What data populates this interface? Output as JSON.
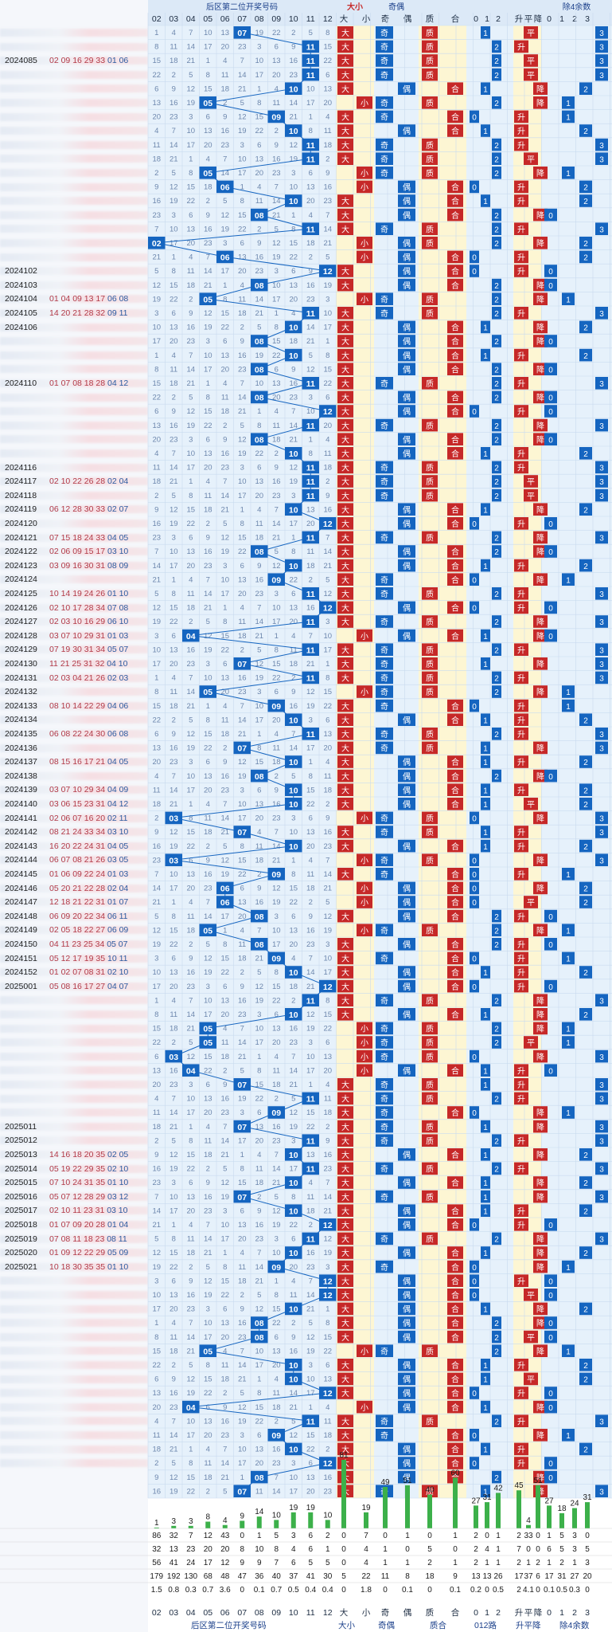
{
  "headers": {
    "group1": "后区第二位开奖号码",
    "group2": "大小",
    "group3": "奇偶",
    "group4": "质合",
    "group5": "012路",
    "group6": "升平降",
    "group7": "除4余数"
  },
  "subheaders": {
    "nums": [
      "02",
      "03",
      "04",
      "05",
      "06",
      "07",
      "08",
      "09",
      "10",
      "11",
      "12"
    ],
    "daxiao": [
      "大",
      "小"
    ],
    "jiou": [
      "奇",
      "偶"
    ],
    "zhihe": [
      "质",
      "合"
    ],
    "lu": [
      "0",
      "1",
      "2"
    ],
    "shengpingjiang": [
      "升",
      "平",
      "降"
    ],
    "yu4": [
      "0",
      "1",
      "2",
      "3"
    ]
  },
  "periods": [
    {
      "id": "2024085",
      "nums": "02 09 16 29 33",
      "back": "01 06"
    },
    {
      "id": "2024102",
      "nums": "",
      "back": ""
    },
    {
      "id": "2024103",
      "nums": "",
      "back": ""
    },
    {
      "id": "2024104",
      "nums": "01 04 09 13 17",
      "back": "06 08"
    },
    {
      "id": "2024105",
      "nums": "14 20 21 28 32",
      "back": "09 11"
    },
    {
      "id": "2024106",
      "nums": "",
      "back": ""
    },
    {
      "id": "2024110",
      "nums": "01 07 08 18 28",
      "back": "04 12"
    },
    {
      "id": "2024116",
      "nums": "",
      "back": ""
    },
    {
      "id": "2024117",
      "nums": "02 10 22 26 28",
      "back": "02 04"
    },
    {
      "id": "2024118",
      "nums": "",
      "back": ""
    },
    {
      "id": "2024119",
      "nums": "06 12 28 30 33",
      "back": "02 07"
    },
    {
      "id": "2024120",
      "nums": "",
      "back": ""
    },
    {
      "id": "2024121",
      "nums": "07 15 18 24 33",
      "back": "04 05"
    },
    {
      "id": "2024122",
      "nums": "02 06 09 15 17",
      "back": "03 10"
    },
    {
      "id": "2024123",
      "nums": "03 09 16 30 31",
      "back": "08 09"
    },
    {
      "id": "2024124",
      "nums": "",
      "back": ""
    },
    {
      "id": "2024125",
      "nums": "10 14 19 24 26",
      "back": "01 10"
    },
    {
      "id": "2024126",
      "nums": "02 10 17 28 34",
      "back": "07 08"
    },
    {
      "id": "2024127",
      "nums": "02 03 10 16 29",
      "back": "06 10"
    },
    {
      "id": "2024128",
      "nums": "03 07 10 29 31",
      "back": "01 03"
    },
    {
      "id": "2024129",
      "nums": "07 19 30 31 34",
      "back": "05 07"
    },
    {
      "id": "2024130",
      "nums": "11 21 25 31 32",
      "back": "04 10"
    },
    {
      "id": "2024131",
      "nums": "02 03 04 21 26",
      "back": "02 03"
    },
    {
      "id": "2024132",
      "nums": "",
      "back": ""
    },
    {
      "id": "2024133",
      "nums": "08 10 14 22 29",
      "back": "04 06"
    },
    {
      "id": "2024134",
      "nums": "",
      "back": ""
    },
    {
      "id": "2024135",
      "nums": "06 08 22 24 30",
      "back": "06 08"
    },
    {
      "id": "2024136",
      "nums": "",
      "back": ""
    },
    {
      "id": "2024137",
      "nums": "08 15 16 17 21",
      "back": "04 05"
    },
    {
      "id": "2024138",
      "nums": "",
      "back": ""
    },
    {
      "id": "2024139",
      "nums": "03 07 10 29 34",
      "back": "04 09"
    },
    {
      "id": "2024140",
      "nums": "03 06 15 23 31",
      "back": "04 12"
    },
    {
      "id": "2024141",
      "nums": "02 06 07 16 20",
      "back": "02 11"
    },
    {
      "id": "2024142",
      "nums": "08 21 24 33 34",
      "back": "03 10"
    },
    {
      "id": "2024143",
      "nums": "16 20 22 24 31",
      "back": "04 05"
    },
    {
      "id": "2024144",
      "nums": "06 07 08 21 26",
      "back": "03 05"
    },
    {
      "id": "2024145",
      "nums": "01 06 09 22 24",
      "back": "01 03"
    },
    {
      "id": "2024146",
      "nums": "05 20 21 22 28",
      "back": "02 04"
    },
    {
      "id": "2024147",
      "nums": "12 18 21 22 31",
      "back": "01 07"
    },
    {
      "id": "2024148",
      "nums": "06 09 20 22 34",
      "back": "06 11"
    },
    {
      "id": "2024149",
      "nums": "02 05 18 22 27",
      "back": "06 09"
    },
    {
      "id": "2024150",
      "nums": "04 11 23 25 34",
      "back": "05 07"
    },
    {
      "id": "2024151",
      "nums": "05 12 17 19 35",
      "back": "10 11"
    },
    {
      "id": "2024152",
      "nums": "01 02 07 08 31",
      "back": "02 10"
    },
    {
      "id": "2025001",
      "nums": "05 08 16 17 27",
      "back": "04 07"
    },
    {
      "id": "2025011",
      "nums": "",
      "back": ""
    },
    {
      "id": "2025012",
      "nums": "",
      "back": ""
    },
    {
      "id": "2025013",
      "nums": "14 16 18 20 35",
      "back": "02 05"
    },
    {
      "id": "2025014",
      "nums": "05 19 22 29 35",
      "back": "02 10"
    },
    {
      "id": "2025015",
      "nums": "07 10 24 31 35",
      "back": "01 10"
    },
    {
      "id": "2025016",
      "nums": "05 07 12 28 29",
      "back": "03 12"
    },
    {
      "id": "2025017",
      "nums": "02 10 11 23 31",
      "back": "03 10"
    },
    {
      "id": "2025018",
      "nums": "01 07 09 20 28",
      "back": "01 04"
    },
    {
      "id": "2025019",
      "nums": "07 08 11 18 23",
      "back": "08 11"
    },
    {
      "id": "2025020",
      "nums": "01 09 12 22 29",
      "back": "05 09"
    },
    {
      "id": "2025021",
      "nums": "10 18 30 35 35",
      "back": "01 10"
    }
  ],
  "chart_data": {
    "type": "table",
    "title": "",
    "columns": [
      "02",
      "03",
      "04",
      "05",
      "06",
      "07",
      "08",
      "09",
      "10",
      "11",
      "12",
      "大",
      "小",
      "奇",
      "偶",
      "质",
      "合",
      "0",
      "1",
      "2",
      "升",
      "平",
      "降",
      "0",
      "1",
      "2",
      "3"
    ],
    "draws": [
      7,
      11,
      11,
      11,
      10,
      5,
      9,
      10,
      11,
      11,
      5,
      6,
      10,
      8,
      11,
      2,
      6,
      12,
      8,
      5,
      11,
      10,
      8,
      10,
      8,
      11,
      8,
      12,
      11,
      8,
      10,
      11,
      11,
      11,
      10,
      12,
      11,
      8,
      10,
      9,
      11,
      12,
      11,
      4,
      11,
      7,
      11,
      5,
      9,
      10,
      11,
      7,
      10,
      8,
      10,
      10,
      3,
      7,
      10,
      3,
      9,
      6,
      6,
      8,
      5,
      8,
      9,
      10,
      12,
      11,
      10,
      5,
      5,
      3,
      4,
      7,
      11,
      9,
      7,
      11,
      10,
      11,
      10,
      7,
      10,
      12,
      11,
      10,
      9,
      12,
      12,
      10,
      8,
      8,
      5,
      10,
      10,
      12,
      4,
      11,
      9,
      10,
      12,
      8,
      7
    ],
    "bar_counts": [
      1,
      3,
      3,
      8,
      4,
      9,
      14,
      10,
      19,
      19,
      10,
      81,
      19,
      49,
      51,
      40,
      60,
      27,
      31,
      42,
      45,
      4,
      51,
      27,
      18,
      24,
      31
    ],
    "stat_rows": [
      {
        "label": "",
        "values": [
          "86",
          "32",
          "7",
          "12",
          "43",
          "0",
          "1",
          "5",
          "3",
          "6",
          "2",
          "0",
          "7",
          "0",
          "1",
          "0",
          "1",
          "2",
          "0",
          "1",
          "2",
          "33",
          "0",
          "1",
          "5",
          "3",
          "0"
        ]
      },
      {
        "label": "",
        "values": [
          "32",
          "13",
          "23",
          "20",
          "20",
          "8",
          "10",
          "8",
          "4",
          "6",
          "1",
          "0",
          "4",
          "1",
          "0",
          "5",
          "0",
          "2",
          "4",
          "1",
          "7",
          "0",
          "0",
          "6",
          "5",
          "3",
          "5"
        ]
      },
      {
        "label": "",
        "values": [
          "56",
          "41",
          "24",
          "17",
          "12",
          "9",
          "9",
          "7",
          "6",
          "5",
          "5",
          "0",
          "4",
          "1",
          "1",
          "2",
          "1",
          "2",
          "1",
          "1",
          "2",
          "1",
          "2",
          "1",
          "2",
          "1",
          "3"
        ]
      },
      {
        "label": "",
        "values": [
          "179",
          "192",
          "130",
          "68",
          "48",
          "47",
          "36",
          "40",
          "37",
          "41",
          "30",
          "5",
          "22",
          "11",
          "8",
          "18",
          "9",
          "13",
          "13",
          "26",
          "17",
          "37",
          "6",
          "17",
          "31",
          "27",
          "20"
        ]
      },
      {
        "label": "",
        "values": [
          "1.5",
          "0.8",
          "0.3",
          "0.7",
          "3.6",
          "0",
          "0.1",
          "0.7",
          "0.5",
          "0.4",
          "0.4",
          "0",
          "1.8",
          "0",
          "0.1",
          "0",
          "0.1",
          "0.2",
          "0",
          "0.5",
          "2",
          "4.1",
          "0",
          "0.1",
          "0.5",
          "0.3",
          "0"
        ]
      }
    ]
  },
  "footer": {
    "g1": "后区第二位开奖号码",
    "g2": "大小",
    "g3": "奇偶",
    "g4": "质合",
    "g5": "012路",
    "g6": "升平降",
    "g7": "除4余数"
  },
  "colors": {
    "blue": "#1565c0",
    "red": "#c62828",
    "grid_bg": "#e3f0fb",
    "yellow_bg": "#fdf6d3",
    "bar_green": "#3cb04a"
  }
}
